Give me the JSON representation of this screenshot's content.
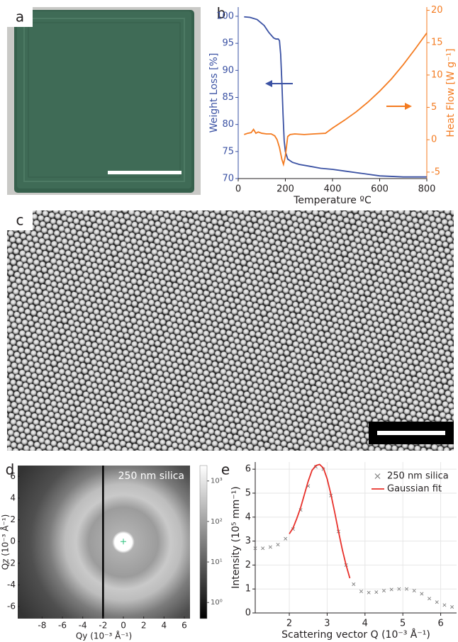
{
  "panel_labels": [
    "a",
    "b",
    "c",
    "d",
    "e"
  ],
  "chart_data": [
    {
      "type": "line",
      "xlabel": "Temperature ºC",
      "ylabel": "Weight Loss [%]",
      "y2label": "Heat Flow [W g⁻¹]",
      "xlim": [
        0,
        800
      ],
      "xticks": [
        0,
        200,
        400,
        600,
        800
      ],
      "ylim": [
        70,
        101.7
      ],
      "yticks": [
        70,
        75,
        80,
        85,
        90,
        95,
        100
      ],
      "y2lim": [
        -6,
        20.5
      ],
      "y2ticks": [
        -5,
        0,
        5,
        10,
        15,
        20
      ],
      "grid": false,
      "series": [
        {
          "color": "#3a51a3",
          "style": "line",
          "x": [
            25,
            50,
            80,
            110,
            130,
            150,
            160,
            170,
            175,
            180,
            185,
            190,
            195,
            200,
            210,
            230,
            260,
            300,
            350,
            400,
            450,
            500,
            550,
            600,
            650,
            700,
            800
          ],
          "values": [
            99.9,
            99.8,
            99.4,
            98.3,
            97,
            96,
            95.8,
            95.8,
            95.5,
            93,
            88,
            82,
            77,
            75,
            73.6,
            73,
            72.6,
            72.3,
            71.9,
            71.7,
            71.4,
            71.1,
            70.8,
            70.5,
            70.4,
            70.3,
            70.3
          ]
        },
        {
          "color": "#f47b20",
          "style": "line",
          "axis": "y2",
          "x": [
            25,
            40,
            55,
            65,
            75,
            85,
            100,
            120,
            140,
            155,
            165,
            175,
            185,
            192,
            200,
            210,
            220,
            240,
            280,
            320,
            370,
            400,
            450,
            500,
            550,
            600,
            650,
            700,
            750,
            800
          ],
          "values": [
            0.8,
            1.0,
            1.1,
            1.6,
            1.0,
            1.2,
            1.0,
            0.9,
            0.9,
            0.6,
            0,
            -1.2,
            -3,
            -3.8,
            -2.5,
            0.5,
            0.8,
            0.9,
            0.8,
            0.9,
            1.0,
            1.8,
            3.0,
            4.3,
            5.8,
            7.5,
            9.4,
            11.6,
            14.0,
            16.5
          ]
        }
      ]
    },
    {
      "type": "image",
      "annotation": "250 nm silica",
      "xlabel": "Qy (10⁻³ Å⁻¹)",
      "ylabel": "Qz (10⁻³ Å⁻¹)",
      "xlim": [
        -10.4,
        6.56
      ],
      "xticks": [
        -8,
        -6,
        -4,
        -2,
        0,
        2,
        4,
        6
      ],
      "ylim": [
        -7.1,
        7.0
      ],
      "yticks": [
        -6,
        -4,
        -2,
        0,
        2,
        4,
        6
      ],
      "colorbar": {
        "log": true,
        "lim": [
          0.4,
          2400
        ],
        "ticks": [
          {
            "value": 1,
            "label": "10⁰"
          },
          {
            "value": 10,
            "label": "10¹"
          },
          {
            "value": 100,
            "label": "10²"
          },
          {
            "value": 1000,
            "label": "10³"
          }
        ]
      }
    },
    {
      "type": "line",
      "xlabel": "Scattering vector Q (10⁻³ Å⁻¹)",
      "ylabel": "Intensity (10⁵ mm⁻¹)",
      "xlim": [
        1.1,
        6.42
      ],
      "xticks": [
        2,
        3,
        4,
        5,
        6
      ],
      "ylim": [
        0,
        6.3
      ],
      "yticks": [
        0,
        1,
        2,
        3,
        4,
        5,
        6
      ],
      "grid": true,
      "legend": "upper right",
      "series": [
        {
          "name": "250 nm silica",
          "color": "#7f7f7f",
          "style": "markers",
          "x": [
            1.1,
            1.3,
            1.5,
            1.7,
            1.9,
            2.1,
            2.3,
            2.5,
            2.7,
            2.9,
            3.1,
            3.3,
            3.5,
            3.7,
            3.9,
            4.1,
            4.3,
            4.5,
            4.7,
            4.9,
            5.1,
            5.3,
            5.5,
            5.7,
            5.9,
            6.1,
            6.3
          ],
          "values": [
            2.7,
            2.7,
            2.75,
            2.85,
            3.1,
            3.5,
            4.3,
            5.3,
            6.1,
            6.0,
            4.9,
            3.4,
            2.0,
            1.2,
            0.9,
            0.85,
            0.87,
            0.93,
            0.98,
            1.0,
            1.0,
            0.93,
            0.8,
            0.6,
            0.45,
            0.33,
            0.25
          ]
        },
        {
          "name": "Gaussian fit",
          "color": "#e8302a",
          "style": "line",
          "x": [
            2.0,
            2.1,
            2.2,
            2.3,
            2.4,
            2.5,
            2.6,
            2.7,
            2.8,
            2.9,
            3.0,
            3.1,
            3.2,
            3.3,
            3.4,
            3.5,
            3.6
          ],
          "values": [
            3.3,
            3.55,
            3.95,
            4.4,
            4.95,
            5.5,
            5.95,
            6.15,
            6.2,
            6.05,
            5.6,
            4.95,
            4.2,
            3.4,
            2.65,
            2.0,
            1.45
          ]
        }
      ]
    }
  ]
}
